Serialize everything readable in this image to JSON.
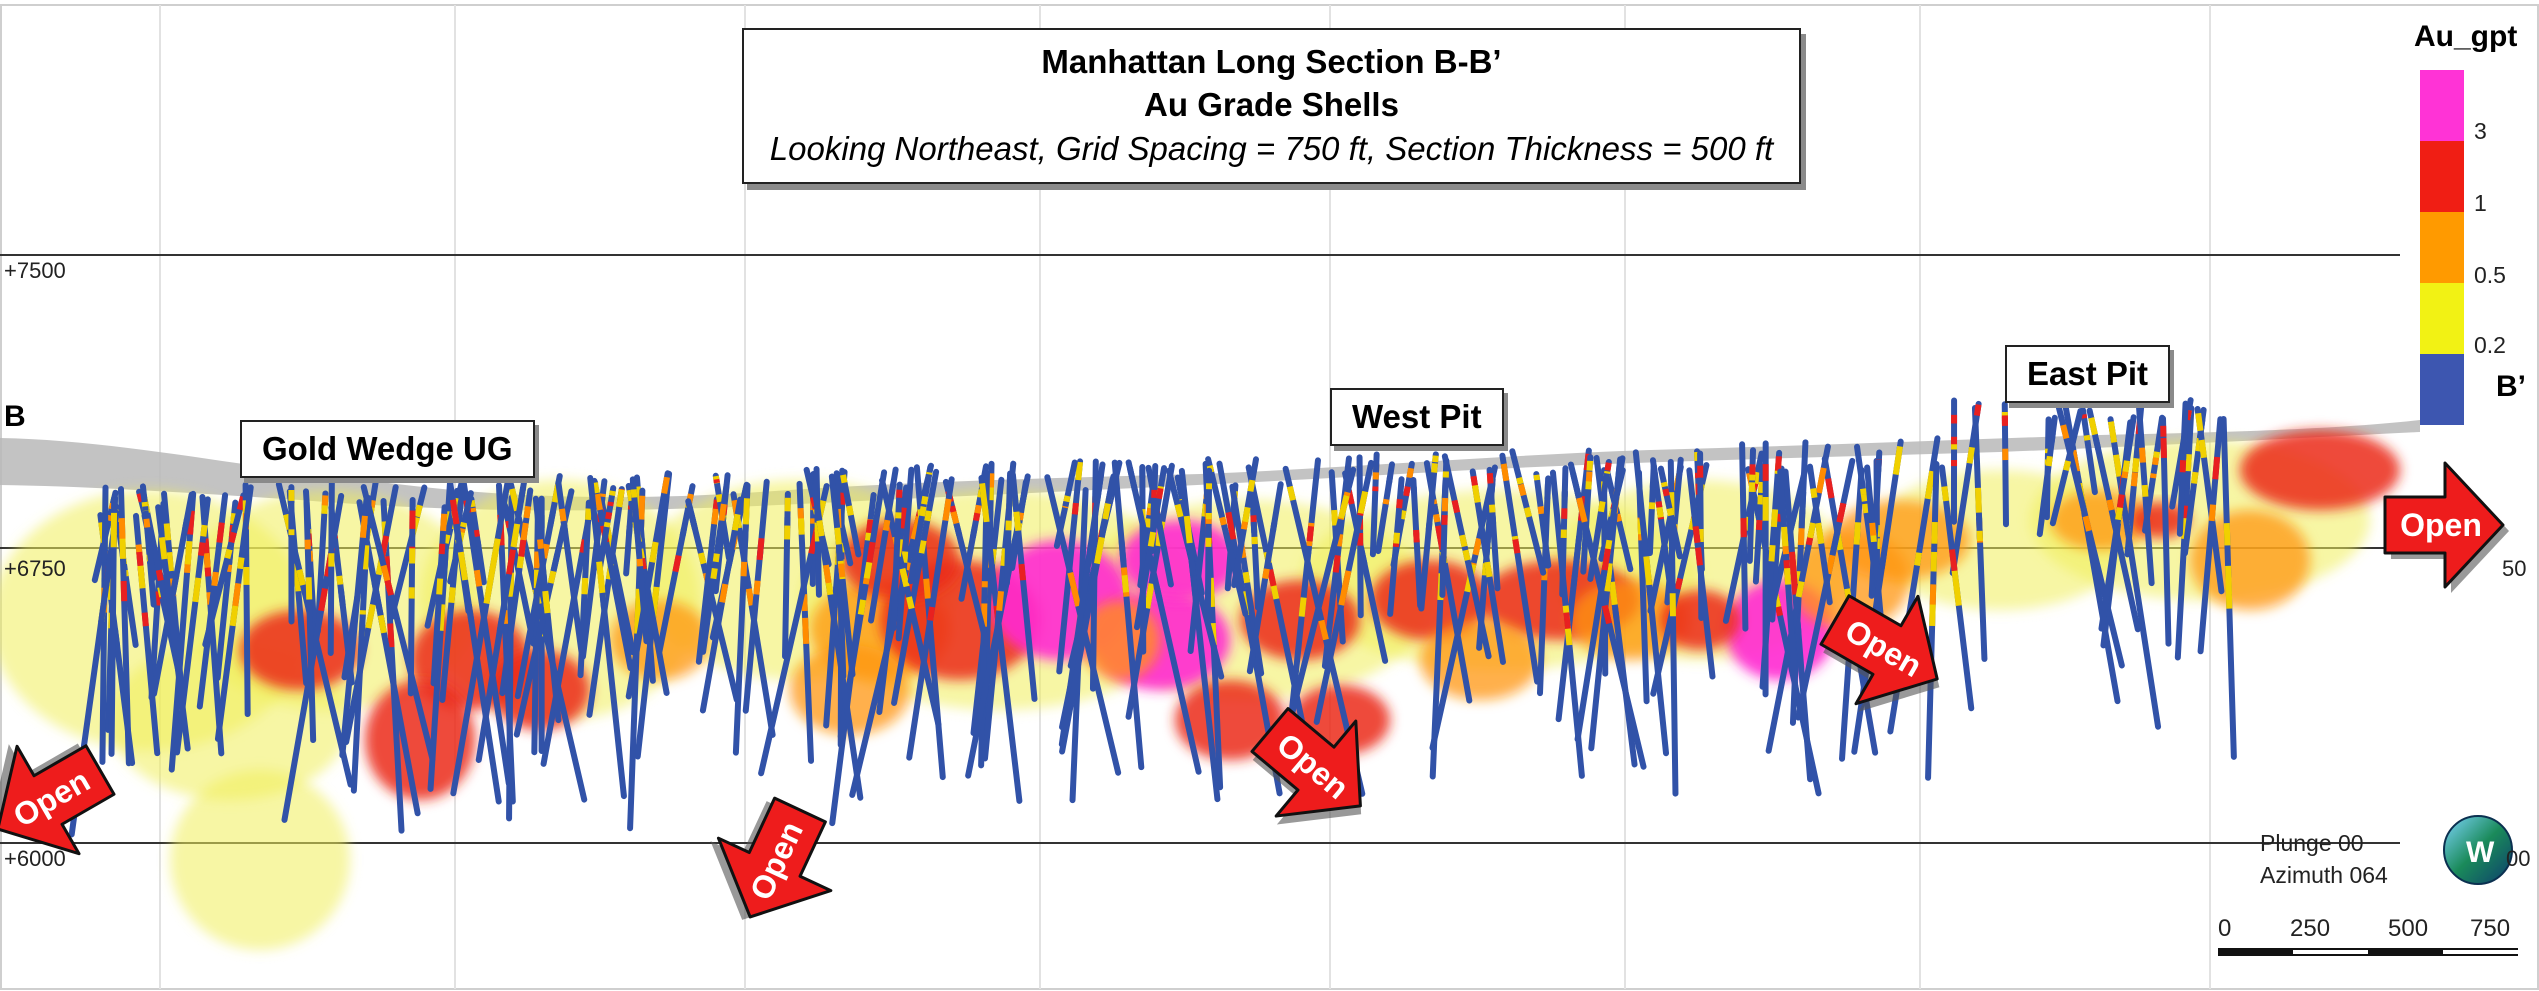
{
  "title": {
    "line1": "Manhattan Long Section B-B’",
    "line2": "Au Grade Shells",
    "line3": "Looking Northeast, Grid Spacing = 750 ft, Section Thickness = 500 ft"
  },
  "section_ends": {
    "start": "B",
    "end": "B’"
  },
  "elevations": {
    "top": "+7500",
    "middle": "+6750",
    "bottom": "+6000",
    "middle_right": "50",
    "bottom_right": "00"
  },
  "areas": {
    "gold_wedge": "Gold Wedge UG",
    "west_pit": "West Pit",
    "east_pit": "East Pit"
  },
  "open_label": "Open",
  "legend": {
    "title": "Au_gpt",
    "ticks": [
      "3",
      "1",
      "0.5",
      "0.2"
    ],
    "colors": [
      "#ff33d6",
      "#f01e14",
      "#ff9a00",
      "#f2f214",
      "#3d56b0"
    ]
  },
  "orientation": {
    "plunge": "Plunge 00",
    "azimuth": "Azimuth 064",
    "compass": "W"
  },
  "scale": {
    "ticks": [
      "0",
      "250",
      "500",
      "750"
    ]
  },
  "colors": {
    "drillhole": "#3152a8",
    "arrow": "#ee1c1c",
    "surface": "#b8b8b8"
  }
}
